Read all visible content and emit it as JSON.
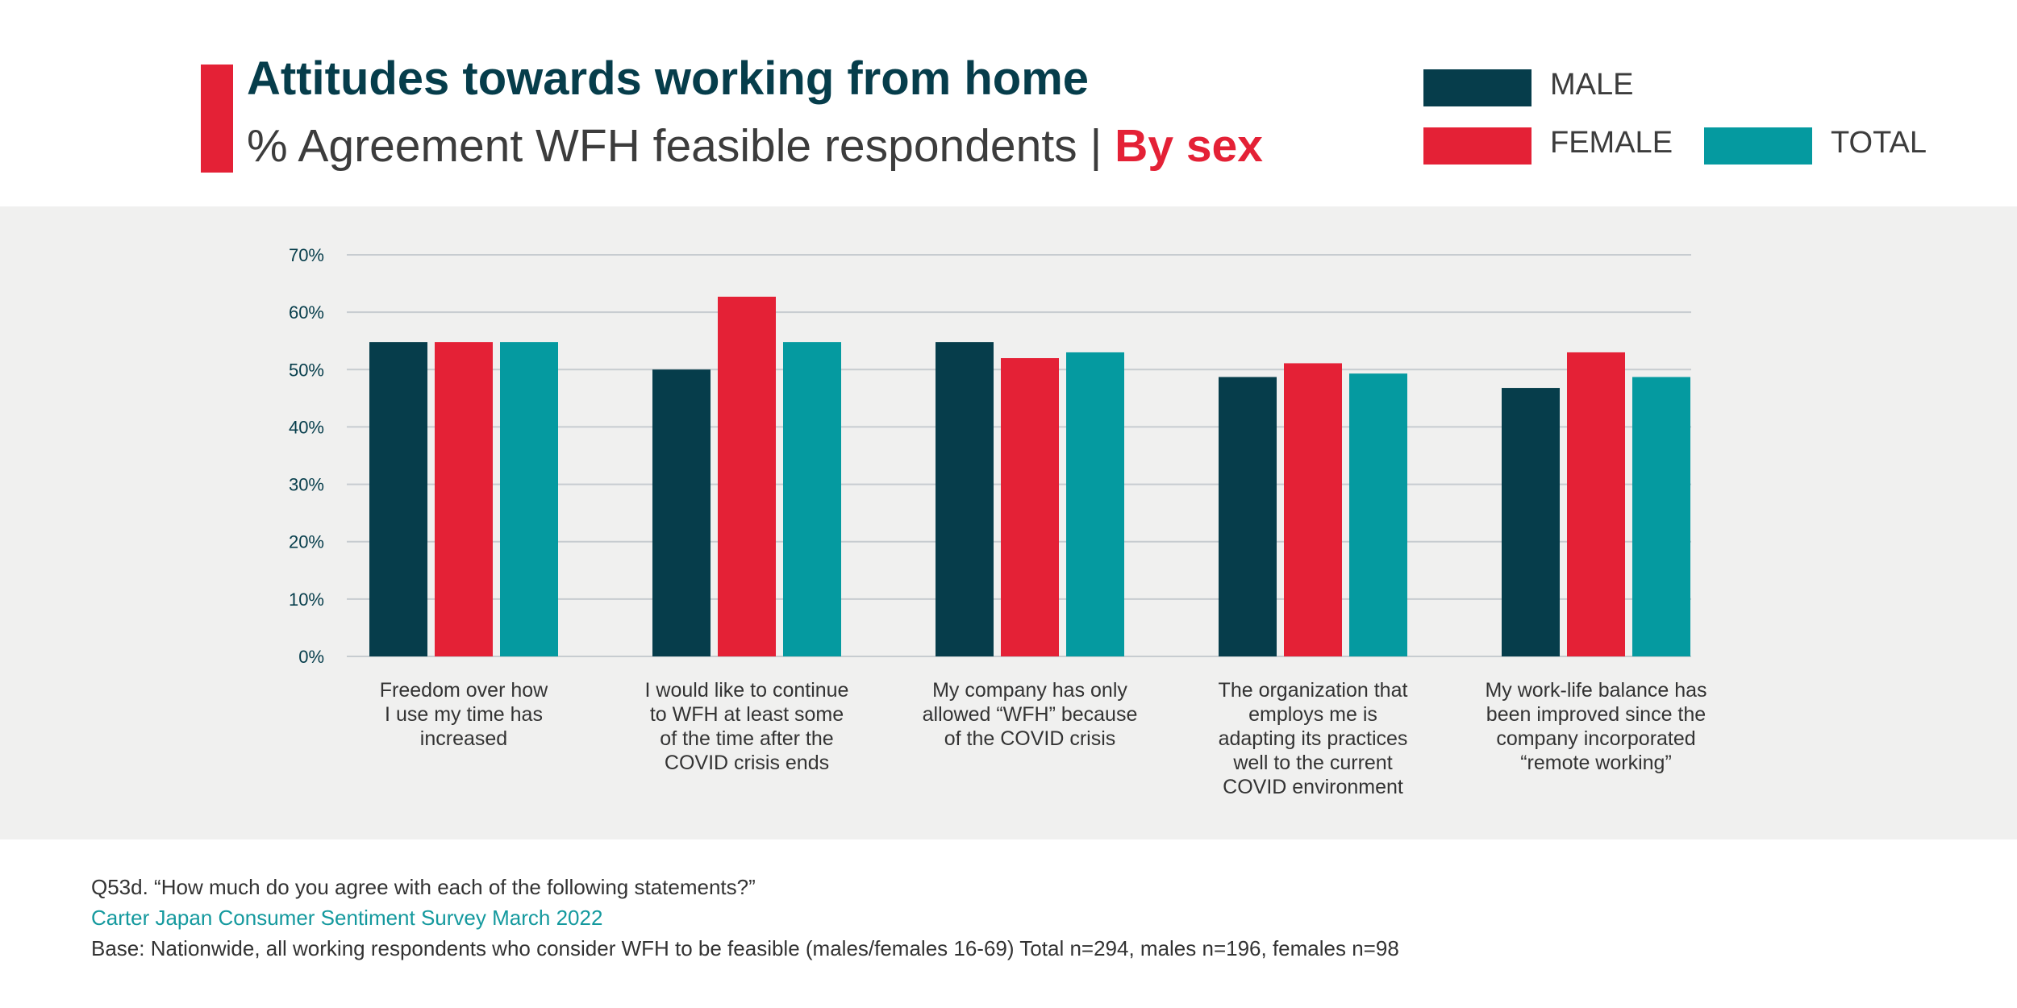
{
  "header": {
    "title": "Attitudes towards working from home",
    "subtitle_main": "% Agreement WFH feasible respondents | ",
    "subtitle_highlight": "By sex"
  },
  "colors": {
    "male": "#063d4b",
    "female": "#e42136",
    "total": "#059aa0",
    "accent_bar": "#e42136",
    "grid": "#c7ccd0",
    "axis_text": "#063d4b",
    "category_text": "#333333",
    "panel_bg": "#f0f0ef"
  },
  "chart_data": {
    "type": "bar",
    "categories": [
      [
        "Freedom over how",
        "I use my time has",
        "increased"
      ],
      [
        "I would like to continue",
        "to WFH at least some",
        "of the time after the",
        "COVID crisis ends"
      ],
      [
        "My company has only",
        "allowed “WFH” because",
        "of the COVID crisis"
      ],
      [
        "The organization that",
        "employs me is",
        "adapting its practices",
        "well to the current",
        "COVID environment"
      ],
      [
        "My work-life balance has",
        "been improved since the",
        "company incorporated",
        "“remote working”"
      ]
    ],
    "series": [
      {
        "name": "MALE",
        "values": [
          54.8,
          50.0,
          54.8,
          48.7,
          46.8
        ]
      },
      {
        "name": "FEMALE",
        "values": [
          54.8,
          62.7,
          52.0,
          51.1,
          53.0
        ]
      },
      {
        "name": "TOTAL",
        "values": [
          54.8,
          54.8,
          53.0,
          49.3,
          48.7
        ]
      }
    ],
    "ylim": [
      0,
      70
    ],
    "yticks": [
      "0%",
      "10%",
      "20%",
      "30%",
      "40%",
      "50%",
      "60%",
      "70%"
    ],
    "grid": true,
    "legend_position": "top-right"
  },
  "footer": {
    "question": "Q53d. “How much do you agree with each of the following statements?”",
    "source": "Carter Japan Consumer Sentiment Survey March 2022",
    "base": "Base: Nationwide, all working respondents who consider WFH to be feasible (males/females 16-69) Total n=294, males n=196, females n=98"
  }
}
